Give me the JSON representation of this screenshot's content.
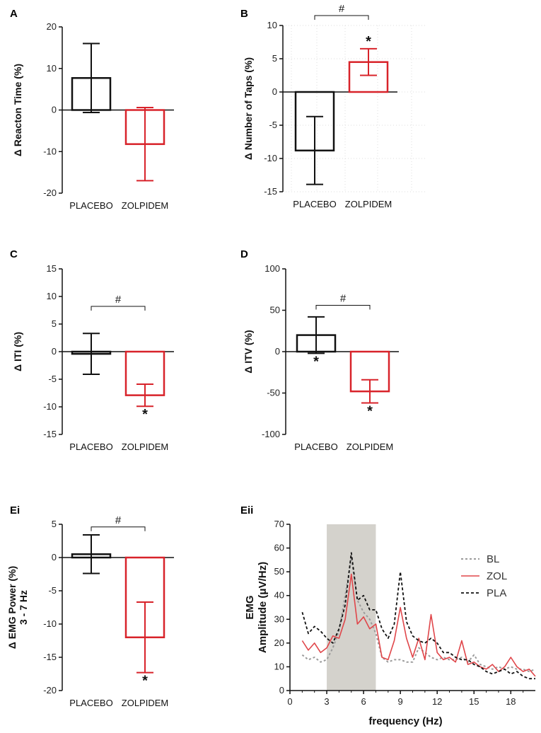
{
  "colors": {
    "placebo": "#111111",
    "zolpidem": "#d8232a",
    "axis": "#111111",
    "shade": "#d4d2cc",
    "grid": "#dddddd",
    "bl": "#9b9b9b",
    "zol": "#e0464a",
    "pla": "#111111"
  },
  "chart_data": [
    {
      "panel": "A",
      "type": "bar",
      "ylabel": "Δ  Reacton Time (%)",
      "categories": [
        "PLACEBO",
        "ZOLPIDEM"
      ],
      "values": [
        7.7,
        -8.2
      ],
      "errors": [
        8.3,
        8.8
      ],
      "ylim": [
        -20,
        20
      ],
      "yticks": [
        -20,
        -10,
        0,
        10,
        20
      ],
      "ytick_labels": [
        "-20",
        "-10",
        "0",
        "10",
        "20"
      ],
      "hash": "",
      "stars": [
        false,
        false
      ],
      "grid": false
    },
    {
      "panel": "B",
      "type": "bar",
      "ylabel": "Δ  Number of Taps (%)",
      "categories": [
        "PLACEBO",
        "ZOLPIDEM"
      ],
      "values": [
        -8.8,
        4.5
      ],
      "errors": [
        5.1,
        2.0
      ],
      "ylim": [
        -15,
        10
      ],
      "yticks": [
        -15,
        -10,
        -5,
        0,
        5,
        10
      ],
      "ytick_labels": [
        "-15",
        "-10",
        "-5",
        "0",
        "5",
        "10"
      ],
      "hash": "#",
      "stars": [
        false,
        true
      ],
      "star_side": [
        "below",
        "above"
      ],
      "grid": true
    },
    {
      "panel": "C",
      "type": "bar",
      "ylabel": "Δ  ITI (%)",
      "categories": [
        "PLACEBO",
        "ZOLPIDEM"
      ],
      "values": [
        -0.4,
        -7.9
      ],
      "errors": [
        3.7,
        2.0
      ],
      "ylim": [
        -15,
        15
      ],
      "yticks": [
        -15,
        -10,
        -5,
        0,
        5,
        10,
        15
      ],
      "ytick_labels": [
        "-15",
        "-10",
        "-5",
        "0",
        "5",
        "10",
        "15"
      ],
      "hash": "#",
      "stars": [
        false,
        true
      ],
      "star_side": [
        "below",
        "below"
      ],
      "grid": false
    },
    {
      "panel": "D",
      "type": "bar",
      "ylabel": "Δ  ITV  (%)",
      "categories": [
        "PLACEBO",
        "ZOLPIDEM"
      ],
      "values": [
        20,
        -48
      ],
      "errors": [
        22,
        14
      ],
      "ylim": [
        -100,
        100
      ],
      "yticks": [
        -100,
        -50,
        0,
        50,
        100
      ],
      "ytick_labels": [
        "-100",
        "-50",
        "0",
        "50",
        "100"
      ],
      "hash": "#",
      "stars": [
        true,
        true
      ],
      "star_side": [
        "below",
        "below"
      ],
      "grid": false
    },
    {
      "panel": "Ei",
      "type": "bar",
      "ylabel": "Δ EMG Power (%)",
      "ylabel2": "3 - 7 Hz",
      "categories": [
        "PLACEBO",
        "ZOLPIDEM"
      ],
      "values": [
        0.5,
        -12
      ],
      "errors": [
        2.9,
        5.3
      ],
      "ylim": [
        -20,
        5
      ],
      "yticks": [
        -20,
        -15,
        -10,
        -5,
        0,
        5
      ],
      "ytick_labels": [
        "-20",
        "-15",
        "-10",
        "-5",
        "0",
        "5"
      ],
      "hash": "#",
      "stars": [
        false,
        true
      ],
      "star_side": [
        "below",
        "below"
      ],
      "grid": false
    },
    {
      "panel": "Eii",
      "type": "line",
      "ylabel": "EMG",
      "ylabel2": "Amplitude (μV/Hz)",
      "xlabel": "frequency (Hz)",
      "xlim": [
        0,
        20
      ],
      "ylim": [
        0,
        70
      ],
      "xticks": [
        0,
        3,
        6,
        9,
        12,
        15,
        18
      ],
      "xtick_labels": [
        "0",
        "3",
        "6",
        "9",
        "12",
        "15",
        "18"
      ],
      "yticks": [
        0,
        10,
        20,
        30,
        40,
        50,
        60,
        70
      ],
      "ytick_labels": [
        "0",
        "10",
        "20",
        "30",
        "40",
        "50",
        "60",
        "70"
      ],
      "shaded_band": [
        3,
        7
      ],
      "legend": [
        "BL",
        "ZOL",
        "PLA"
      ],
      "x": [
        1,
        1.5,
        2,
        2.5,
        3,
        3.5,
        4,
        4.5,
        5,
        5.5,
        6,
        6.5,
        7,
        7.5,
        8,
        8.5,
        9,
        9.5,
        10,
        10.5,
        11,
        11.5,
        12,
        12.5,
        13,
        13.5,
        14,
        14.5,
        15,
        15.5,
        16,
        16.5,
        17,
        17.5,
        18,
        18.5,
        19,
        19.5,
        20
      ],
      "series": [
        {
          "name": "BL",
          "style": "dotted",
          "values": [
            15,
            13,
            14,
            12,
            13,
            18,
            25,
            40,
            56,
            38,
            33,
            30,
            24,
            14,
            12,
            13,
            13,
            12,
            12,
            18,
            16,
            14,
            13,
            14,
            13,
            13,
            14,
            12,
            15,
            11,
            10,
            9,
            10,
            9,
            10,
            9,
            9,
            8,
            9
          ]
        },
        {
          "name": "ZOL",
          "style": "solid",
          "values": [
            21,
            17,
            20,
            16,
            18,
            23,
            22,
            30,
            49,
            28,
            31,
            26,
            28,
            14,
            13,
            21,
            35,
            22,
            14,
            22,
            13,
            32,
            16,
            13,
            14,
            12,
            21,
            11,
            12,
            10,
            9,
            11,
            8,
            10,
            14,
            10,
            8,
            9,
            6
          ]
        },
        {
          "name": "PLA",
          "style": "dashed",
          "values": [
            33,
            24,
            27,
            25,
            22,
            20,
            26,
            36,
            58,
            38,
            40,
            34,
            34,
            26,
            22,
            28,
            50,
            29,
            23,
            21,
            20,
            22,
            20,
            16,
            16,
            14,
            13,
            13,
            11,
            10,
            8,
            7,
            8,
            9,
            7,
            8,
            6,
            5,
            5
          ]
        }
      ]
    }
  ]
}
